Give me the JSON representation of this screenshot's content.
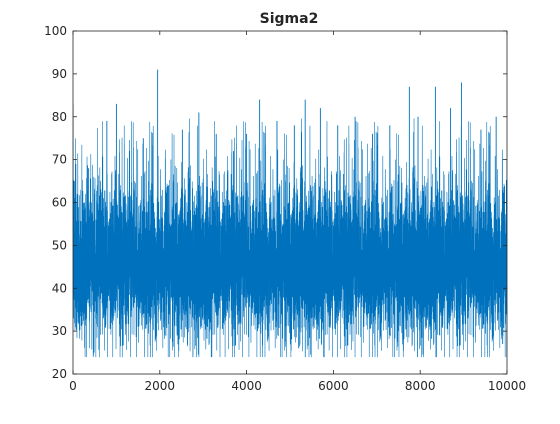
{
  "chart_data": {
    "type": "line",
    "title": "Sigma2",
    "xlabel": "",
    "ylabel": "",
    "xlim": [
      0,
      10000
    ],
    "ylim": [
      20,
      100
    ],
    "x_ticks": [
      0,
      2000,
      4000,
      6000,
      8000,
      10000
    ],
    "y_ticks": [
      20,
      30,
      40,
      50,
      60,
      70,
      80,
      90,
      100
    ],
    "grid": false,
    "legend": "none",
    "series": [
      {
        "color": "#0072BD",
        "n_samples": 10000,
        "typical_range": [
          33,
          62
        ],
        "center": 46,
        "x": [
          0,
          10,
          30,
          60,
          100,
          160,
          260,
          300,
          360,
          460,
          560,
          700,
          780,
          900,
          1000,
          1120,
          1300,
          1500,
          1620,
          1800,
          1950,
          1980,
          2200,
          2400,
          2520,
          2700,
          2900,
          3100,
          3300,
          3500,
          3700,
          3850,
          4000,
          4250,
          4300,
          4500,
          4700,
          4900,
          5100,
          5200,
          5350,
          5500,
          5700,
          5900,
          6100,
          6350,
          6500,
          6700,
          6900,
          7100,
          7300,
          7500,
          7750,
          7800,
          7950,
          8200,
          8350,
          8450,
          8700,
          8850,
          8950,
          9100,
          9400,
          9650,
          9750,
          9900,
          10000
        ],
        "y": [
          83,
          33,
          65,
          40,
          62,
          35,
          60,
          33,
          68,
          36,
          64,
          33,
          79,
          36,
          83,
          34,
          72,
          31,
          75,
          33,
          91,
          35,
          64,
          29,
          77,
          34,
          81,
          31,
          76,
          33,
          72,
          32,
          76,
          30,
          84,
          33,
          79,
          31,
          78,
          26,
          84,
          33,
          82,
          31,
          78,
          32,
          80,
          31,
          76,
          33,
          78,
          30,
          87,
          33,
          80,
          31,
          87,
          29,
          82,
          31,
          88,
          33,
          77,
          32,
          80,
          27,
          70
        ]
      }
    ]
  }
}
